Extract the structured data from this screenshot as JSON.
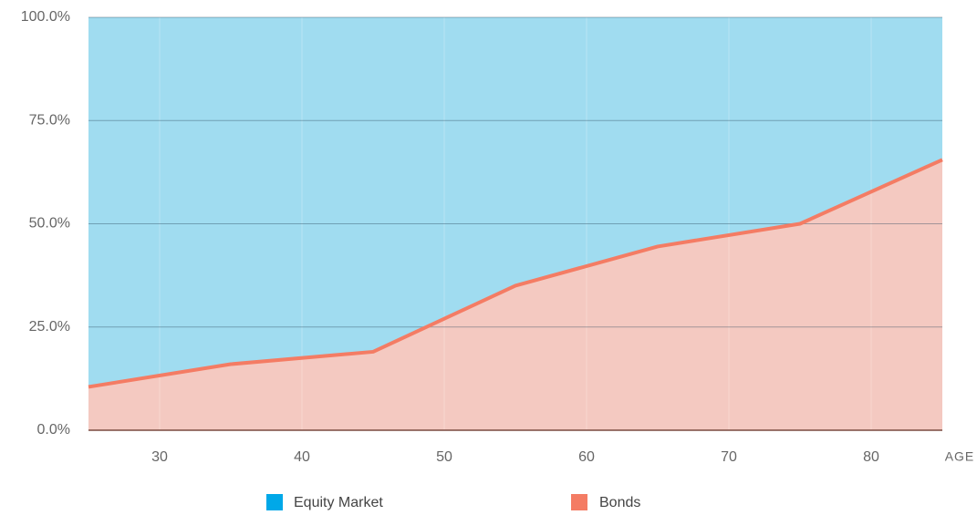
{
  "chart_data": {
    "type": "area",
    "x_label": "AGE",
    "x": [
      25,
      35,
      45,
      55,
      65,
      75,
      85
    ],
    "series": [
      {
        "name": "Bonds",
        "color": "#f47c64",
        "area_color": "#f4c9c1",
        "values": [
          10.5,
          16,
          19,
          35,
          44.5,
          50,
          65.5
        ]
      },
      {
        "name": "Equity Market",
        "color": "#00a8e8",
        "area_color": "#a0dcf0",
        "values": [
          89.5,
          84,
          81,
          65,
          55.5,
          50,
          34.5
        ]
      }
    ],
    "stacked": true,
    "xlim": [
      25,
      85
    ],
    "xticks": [
      30,
      40,
      50,
      60,
      70,
      80
    ],
    "ylim": [
      0,
      100
    ],
    "yticks": [
      {
        "value": 0,
        "label": "0.0%"
      },
      {
        "value": 25,
        "label": "25.0%"
      },
      {
        "value": 50,
        "label": "50.0%"
      },
      {
        "value": 75,
        "label": "75.0%"
      },
      {
        "value": 100,
        "label": "100.0%"
      }
    ],
    "grid": true
  }
}
